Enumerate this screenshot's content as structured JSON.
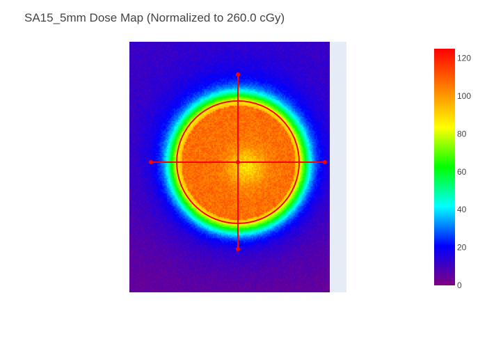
{
  "chart_data": {
    "type": "heatmap",
    "title": "SA15_5mm Dose Map (Normalized to 260.0 cGy)",
    "colorscale": [
      "#800080",
      "#0000ff",
      "#00ffff",
      "#00ff00",
      "#ffff00",
      "#ff8000",
      "#ff0000"
    ],
    "colorbar": {
      "range": [
        0,
        125
      ],
      "ticks": [
        0,
        20,
        40,
        60,
        80,
        100,
        120
      ],
      "tick_labels": [
        "0",
        "20",
        "40",
        "60",
        "80",
        "100",
        "120"
      ]
    },
    "field": {
      "plateau_value": 107,
      "center_value": 88,
      "background_bottom_value": 4,
      "background_top_value": 11
    },
    "overlay": {
      "color": "#ff0000",
      "shapes": [
        "circle",
        "horizontal-profile-line",
        "vertical-profile-line"
      ],
      "markers": [
        "center",
        "left-end",
        "right-end",
        "top-end",
        "bottom-end"
      ]
    },
    "plot_background": "#e5ecf6"
  }
}
